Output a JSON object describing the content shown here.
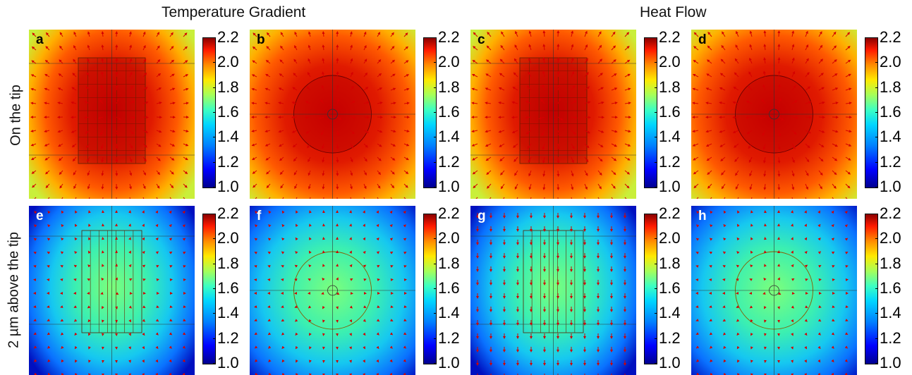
{
  "column_titles": [
    "Temperature Gradient",
    "Heat Flow"
  ],
  "row_labels": [
    "On the tip",
    "2 µm above the tip"
  ],
  "panels": [
    {
      "label": "a",
      "view": "side",
      "row": "top",
      "type": "gradient"
    },
    {
      "label": "b",
      "view": "top",
      "row": "top",
      "type": "gradient"
    },
    {
      "label": "c",
      "view": "side",
      "row": "top",
      "type": "flow"
    },
    {
      "label": "d",
      "view": "top",
      "row": "top",
      "type": "flow"
    },
    {
      "label": "e",
      "view": "side",
      "row": "bottom",
      "type": "gradient"
    },
    {
      "label": "f",
      "view": "top",
      "row": "bottom",
      "type": "gradient"
    },
    {
      "label": "g",
      "view": "side",
      "row": "bottom",
      "type": "flow"
    },
    {
      "label": "h",
      "view": "top",
      "row": "bottom",
      "type": "flow"
    }
  ],
  "colorbar": {
    "ticks": [
      "2.2",
      "2.0",
      "1.8",
      "1.6",
      "1.4",
      "1.2",
      "1.0"
    ],
    "min": 1.0,
    "max": 2.2
  },
  "colors": {
    "arrow": "#d40000",
    "label_on_top_row": "#000000",
    "label_on_bottom_row": "#ffffff"
  }
}
